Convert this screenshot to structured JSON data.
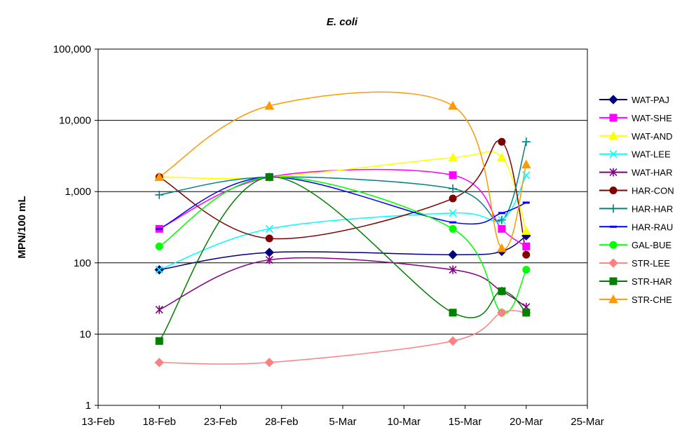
{
  "chart_data": {
    "type": "line",
    "title": "E. coli",
    "xlabel": "",
    "ylabel": "MPN/100 mL",
    "y_scale": "log",
    "ylim": [
      1,
      100000
    ],
    "y_ticks": [
      1,
      10,
      100,
      1000,
      10000,
      100000
    ],
    "y_tick_labels": [
      "1",
      "10",
      "100",
      "1,000",
      "10,000",
      "100,000"
    ],
    "xlim": [
      "13-Feb",
      "25-Mar"
    ],
    "x_ticks": [
      "13-Feb",
      "18-Feb",
      "23-Feb",
      "28-Feb",
      "5-Mar",
      "10-Mar",
      "15-Mar",
      "20-Mar",
      "25-Mar"
    ],
    "x": [
      "18-Feb",
      "27-Feb",
      "14-Mar",
      "18-Mar",
      "20-Mar"
    ],
    "grid": "horizontal major",
    "legend_position": "right",
    "series": [
      {
        "name": "WAT-PAJ",
        "color": "#000080",
        "marker": "diamond",
        "values": [
          80,
          140,
          130,
          145,
          240
        ]
      },
      {
        "name": "WAT-SHE",
        "color": "#ff00ff",
        "marker": "square",
        "values": [
          300,
          1600,
          1700,
          300,
          170
        ]
      },
      {
        "name": "WAT-AND",
        "color": "#ffff00",
        "marker": "triangle",
        "values": [
          1600,
          1600,
          3000,
          3000,
          280
        ]
      },
      {
        "name": "WAT-LEE",
        "color": "#00ffff",
        "marker": "x",
        "values": [
          80,
          300,
          500,
          400,
          1700
        ]
      },
      {
        "name": "WAT-HAR",
        "color": "#800080",
        "marker": "asterisk",
        "values": [
          22,
          110,
          80,
          40,
          24
        ]
      },
      {
        "name": "HAR-CON",
        "color": "#800000",
        "marker": "circle",
        "values": [
          1600,
          220,
          800,
          5000,
          130
        ]
      },
      {
        "name": "HAR-HAR",
        "color": "#008080",
        "marker": "plus",
        "values": [
          900,
          1600,
          1100,
          400,
          5000
        ]
      },
      {
        "name": "HAR-RAU",
        "color": "#0000ff",
        "marker": "dash",
        "values": [
          300,
          1600,
          370,
          500,
          700
        ]
      },
      {
        "name": "GAL-BUE",
        "color": "#00ff00",
        "marker": "circle",
        "values": [
          170,
          1600,
          300,
          20,
          80
        ]
      },
      {
        "name": "STR-LEE",
        "color": "#ff8080",
        "marker": "diamond",
        "values": [
          4,
          4,
          8,
          20,
          20
        ]
      },
      {
        "name": "STR-HAR",
        "color": "#008000",
        "marker": "square",
        "values": [
          8,
          1600,
          20,
          40,
          20
        ]
      },
      {
        "name": "STR-CHE",
        "color": "#ff9900",
        "marker": "triangle",
        "values": [
          1600,
          16000,
          16000,
          160,
          2400
        ]
      }
    ]
  }
}
